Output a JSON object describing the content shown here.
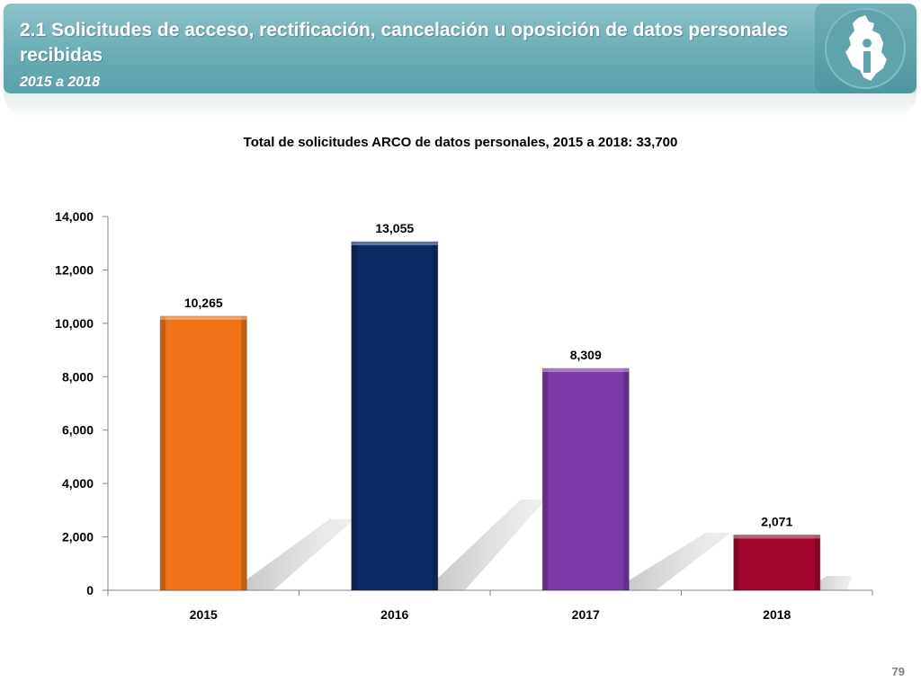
{
  "header": {
    "title": "2.1 Solicitudes de acceso, rectificación, cancelación u oposición de datos personales recibidas",
    "subtitle": "2015 a 2018",
    "logo_icon": "cdmx-map-info-icon"
  },
  "chart_data": {
    "type": "bar",
    "title": "Total de solicitudes ARCO de datos personales, 2015 a 2018: 33,700",
    "categories": [
      "2015",
      "2016",
      "2017",
      "2018"
    ],
    "values": [
      10265,
      13055,
      8309,
      2071
    ],
    "value_labels": [
      "10,265",
      "13,055",
      "8,309",
      "2,071"
    ],
    "colors": [
      "#f07317",
      "#0d2a67",
      "#7a3aa8",
      "#a2062f"
    ],
    "ylim": [
      0,
      14000
    ],
    "yticks": [
      0,
      2000,
      4000,
      6000,
      8000,
      10000,
      12000,
      14000
    ],
    "ytick_labels": [
      "0",
      "2,000",
      "4,000",
      "6,000",
      "8,000",
      "10,000",
      "12,000",
      "14,000"
    ],
    "xlabel": "",
    "ylabel": "",
    "grid": false,
    "legend": "none"
  },
  "footer": {
    "page_number": "79"
  }
}
